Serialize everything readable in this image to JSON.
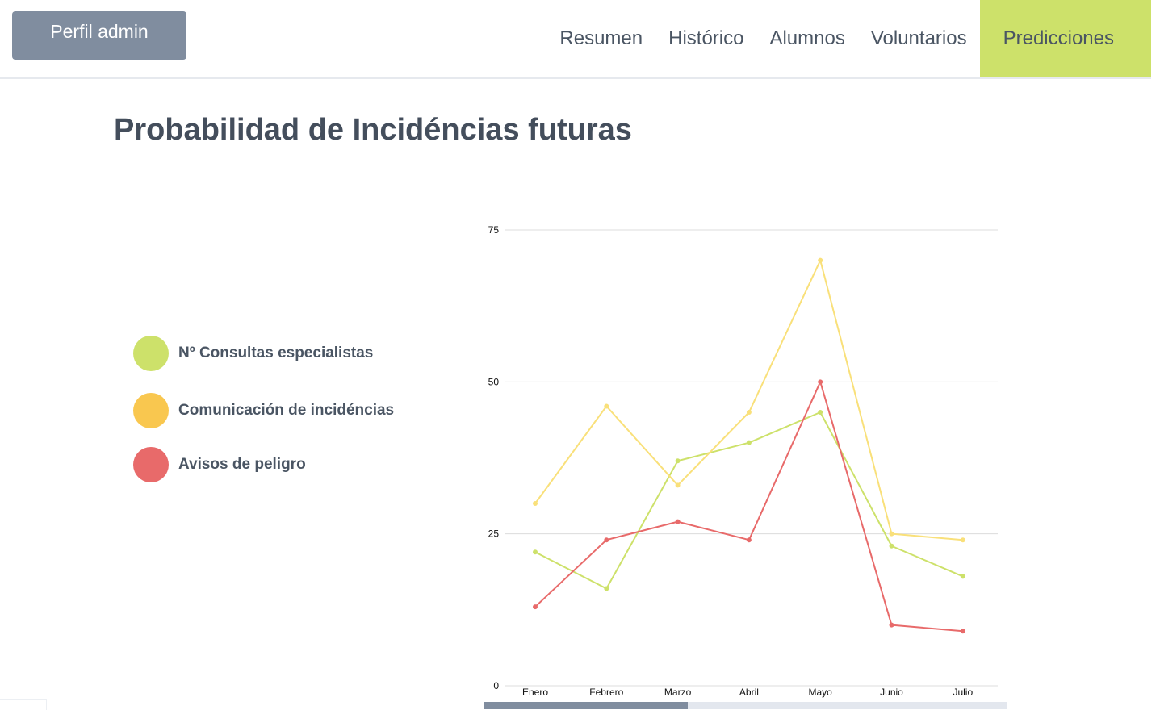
{
  "header": {
    "profile_button": "Perfil admin",
    "nav": [
      {
        "label": "Resumen",
        "active": false
      },
      {
        "label": "Histórico",
        "active": false
      },
      {
        "label": "Alumnos",
        "active": false
      },
      {
        "label": "Voluntarios",
        "active": false
      },
      {
        "label": "Predicciones",
        "active": true
      }
    ],
    "active_color": "#cde16a"
  },
  "page": {
    "title": "Probabilidad de Incidéncias futuras"
  },
  "chart_data": {
    "type": "line",
    "title": "",
    "xlabel": "",
    "ylabel": "",
    "categories": [
      "Enero",
      "Febrero",
      "Marzo",
      "Abril",
      "Mayo",
      "Junio",
      "Julio"
    ],
    "yticks": [
      0,
      25,
      50,
      75
    ],
    "ylim": [
      0,
      75
    ],
    "grid": true,
    "legend_position": "left",
    "series": [
      {
        "name": "Nº Consultas especialistas",
        "color": "#cde16a",
        "values": [
          22,
          16,
          37,
          40,
          45,
          23,
          18
        ]
      },
      {
        "name": "Comunicación de incidéncias",
        "color": "#f9e07a",
        "values": [
          30,
          46,
          33,
          45,
          70,
          25,
          24
        ]
      },
      {
        "name": "Avisos de peligro",
        "color": "#e86a6a",
        "values": [
          13,
          24,
          27,
          24,
          50,
          10,
          9
        ]
      }
    ],
    "legend_dot_colors": [
      "#cde16a",
      "#f9c74f",
      "#e86a6a"
    ]
  },
  "scrollbar": {
    "position_fraction": 0.39
  }
}
